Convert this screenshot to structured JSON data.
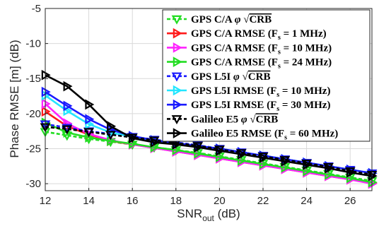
{
  "chart_data": {
    "type": "line",
    "xlabel": "SNR",
    "xlabel_sub": "out",
    "xlabel_unit": " (dB)",
    "ylabel": "Phase RMSE [m] (dB)",
    "xlim": [
      12,
      27
    ],
    "ylim": [
      -31,
      -5
    ],
    "xticks": [
      12,
      14,
      16,
      18,
      20,
      22,
      24,
      26
    ],
    "yticks": [
      -5,
      -10,
      -15,
      -20,
      -25,
      -30
    ],
    "grid": true,
    "legend_position": "top-right",
    "x": [
      12,
      13,
      14,
      15,
      16,
      17,
      18,
      19,
      20,
      21,
      22,
      23,
      24,
      25,
      26,
      27
    ],
    "series": [
      {
        "name": "GPS C/A φ √CRB",
        "legend": {
          "main": "GPS C/A ",
          "phi": "φ ",
          "crb": "CRB"
        },
        "color": "#22dd22",
        "marker": "triangle-down",
        "dash": "5,3",
        "values": [
          -22.6,
          -23.1,
          -23.6,
          -24.0,
          -24.4,
          -24.8,
          -25.2,
          -25.6,
          -26.1,
          -26.6,
          -27.1,
          -27.6,
          -28.1,
          -28.6,
          -29.1,
          -29.6
        ]
      },
      {
        "name": "GPS C/A RMSE (Fs = 1 MHz)",
        "legend": {
          "main": "GPS C/A RMSE (F",
          "sub": "s",
          "tail": " = 1 MHz)"
        },
        "color": "#ff1a1a",
        "marker": "triangle-right",
        "dash": "",
        "values": [
          -19.7,
          -21.8,
          -23.0,
          -23.9,
          -24.4,
          -24.9,
          -25.4,
          -25.9,
          -26.4,
          -26.9,
          -27.4,
          -27.9,
          -28.4,
          -28.9,
          -29.4,
          -29.9
        ]
      },
      {
        "name": "GPS C/A RMSE (Fs = 10 MHz)",
        "legend": {
          "main": "GPS C/A RMSE (F",
          "sub": "s",
          "tail": " = 10 MHz)"
        },
        "color": "#ff22ff",
        "marker": "triangle-right",
        "dash": "",
        "values": [
          -18.6,
          -21.4,
          -22.9,
          -23.8,
          -24.4,
          -24.9,
          -25.4,
          -25.9,
          -26.4,
          -26.9,
          -27.4,
          -27.9,
          -28.4,
          -28.9,
          -29.4,
          -30.0
        ]
      },
      {
        "name": "GPS C/A RMSE (Fs = 24 MHz)",
        "legend": {
          "main": "GPS C/A RMSE (F",
          "sub": "s",
          "tail": " = 24 MHz)"
        },
        "color": "#22dd22",
        "marker": "triangle-right",
        "dash": "",
        "values": [
          -21.3,
          -22.7,
          -23.4,
          -23.9,
          -24.3,
          -24.8,
          -25.2,
          -25.7,
          -26.2,
          -26.7,
          -27.2,
          -27.7,
          -28.2,
          -28.7,
          -29.2,
          -29.8
        ]
      },
      {
        "name": "GPS L5I φ √CRB",
        "legend": {
          "main": "GPS L5I ",
          "phi": "φ ",
          "crb": "CRB"
        },
        "color": "#1a1aff",
        "marker": "triangle-down",
        "dash": "5,3",
        "values": [
          -21.5,
          -22.0,
          -22.5,
          -22.9,
          -23.3,
          -23.7,
          -24.1,
          -24.5,
          -25.0,
          -25.5,
          -26.0,
          -26.5,
          -27.0,
          -27.5,
          -28.0,
          -28.5
        ]
      },
      {
        "name": "GPS L5I RMSE (Fs = 10 MHz)",
        "legend": {
          "main": "GPS L5I RMSE (F",
          "sub": "s",
          "tail": " = 10 MHz)"
        },
        "color": "#22e6ff",
        "marker": "triangle-right",
        "dash": "",
        "values": [
          -17.4,
          -19.6,
          -21.5,
          -22.7,
          -23.3,
          -23.8,
          -24.2,
          -24.6,
          -25.0,
          -25.5,
          -26.0,
          -26.5,
          -27.0,
          -27.5,
          -28.0,
          -28.5
        ]
      },
      {
        "name": "GPS L5I RMSE (Fs = 30 MHz)",
        "legend": {
          "main": "GPS L5I RMSE (F",
          "sub": "s",
          "tail": " = 30 MHz)"
        },
        "color": "#1a1aff",
        "marker": "triangle-right",
        "dash": "",
        "values": [
          -16.9,
          -18.9,
          -20.8,
          -22.3,
          -23.2,
          -23.8,
          -24.2,
          -24.6,
          -25.0,
          -25.5,
          -26.0,
          -26.5,
          -27.0,
          -27.5,
          -28.0,
          -28.5
        ]
      },
      {
        "name": "Galileo E5 φ √CRB",
        "legend": {
          "main": "Galileo E5 ",
          "phi": "φ ",
          "crb": "CRB"
        },
        "color": "#000000",
        "marker": "triangle-down",
        "dash": "5,3",
        "values": [
          -21.9,
          -22.2,
          -22.6,
          -23.0,
          -23.4,
          -23.8,
          -24.2,
          -24.6,
          -25.1,
          -25.6,
          -26.1,
          -26.6,
          -27.1,
          -27.6,
          -28.2,
          -28.7
        ]
      },
      {
        "name": "Galileo E5 RMSE (Fs = 60 MHz)",
        "legend": {
          "main": "Galileo E5 RMSE (F",
          "sub": "s",
          "tail": " = 60 MHz)"
        },
        "color": "#000000",
        "marker": "triangle-right",
        "dash": "",
        "values": [
          -14.5,
          -16.1,
          -18.7,
          -21.8,
          -23.5,
          -24.1,
          -24.4,
          -24.8,
          -25.3,
          -25.8,
          -26.3,
          -26.8,
          -27.3,
          -27.8,
          -28.4,
          -28.9
        ]
      }
    ]
  }
}
